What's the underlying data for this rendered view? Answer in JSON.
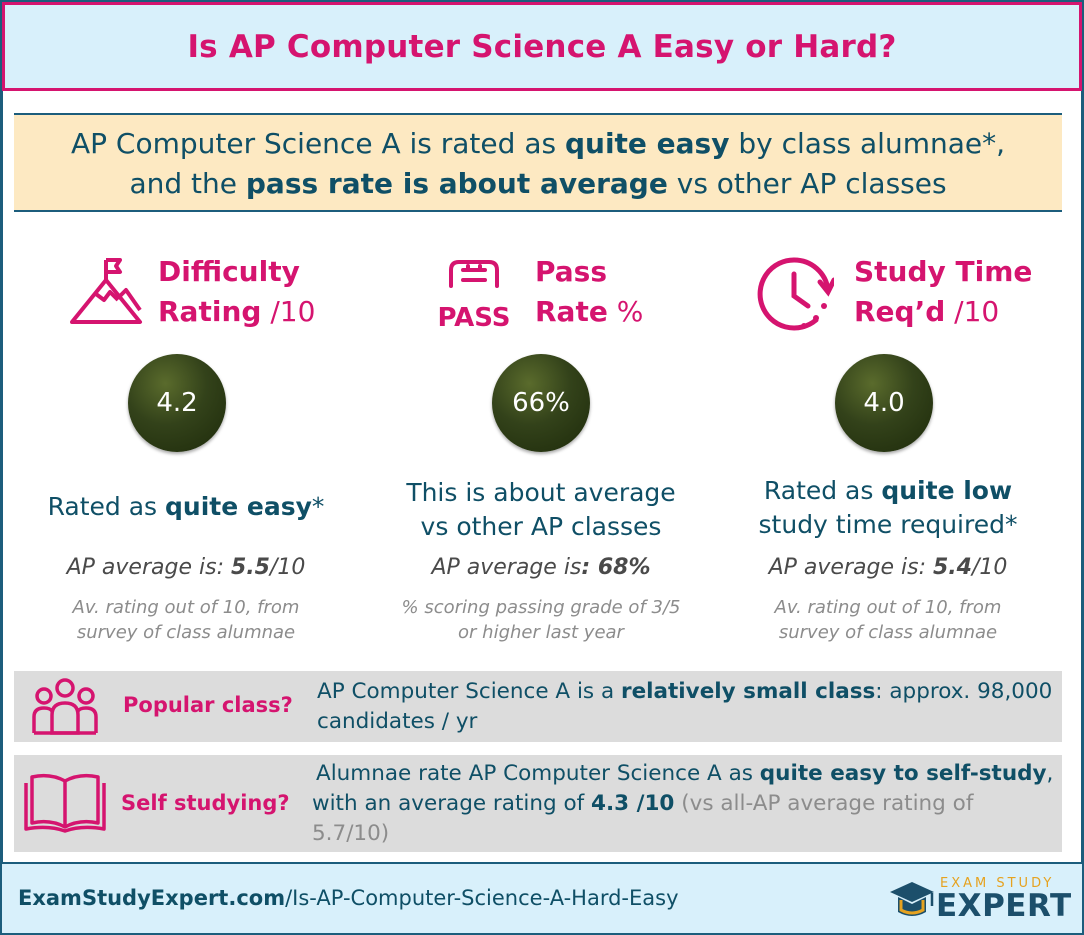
{
  "header": {
    "title": "Is AP Computer Science A Easy or Hard?"
  },
  "summary": {
    "line1_pre": "AP Computer Science A is rated as ",
    "line1_bold": "quite easy",
    "line1_post": " by class alumnae*,",
    "line2_pre": "and the ",
    "line2_bold": "pass rate is about average",
    "line2_post": " vs other AP classes"
  },
  "columns": [
    {
      "icon": "mountain-flag-icon",
      "title_line1": "Difficulty",
      "title_line2": "Rating",
      "unit": " /10",
      "value": "4.2",
      "desc_pre": "Rated as ",
      "desc_bold": "quite easy",
      "desc_post": "*",
      "avg_pre": "AP average is: ",
      "avg_bold": "5.5",
      "avg_post": "/10",
      "note_line1": "Av. rating out of 10, from",
      "note_line2": "survey of class alumnae"
    },
    {
      "icon": "pass-icon",
      "icon_text": "PASS",
      "title_line1": "Pass",
      "title_line2": "Rate",
      "unit": " %",
      "value": "66%",
      "desc_line1": "This is about average",
      "desc_line2": "vs other AP classes",
      "avg_pre": "AP average is",
      "avg_bold": ": 68%",
      "note_line1": "% scoring passing grade of 3/5",
      "note_line2": "or higher last year"
    },
    {
      "icon": "clock-icon",
      "title_line1": "Study Time",
      "title_line2": "Req’d",
      "unit": " /10",
      "value": "4.0",
      "desc_pre": "Rated as ",
      "desc_bold": "quite low",
      "desc_line2": "study time required*",
      "avg_pre": "AP average is: ",
      "avg_bold": "5.4",
      "avg_post": "/10",
      "note_line1": "Av. rating out of 10, from",
      "note_line2": "survey of class alumnae"
    }
  ],
  "popular": {
    "icon": "people-icon",
    "label": "Popular class?",
    "text_pre": "AP Computer Science A is a ",
    "text_bold": "relatively small class",
    "text_post": ": approx. 98,000",
    "text_line2": "candidates / yr"
  },
  "self_study": {
    "icon": "open-book-icon",
    "label": "Self studying?",
    "text_pre": "Alumnae rate AP Computer Science A as ",
    "text_bold": "quite easy to self-study",
    "text_post": ",",
    "text2_pre": "with an average rating of ",
    "text2_bold": "4.3 /10",
    "text2_muted": " (vs all-AP average rating of",
    "text3_muted": "5.7/10)"
  },
  "footer": {
    "url_bold": "ExamStudyExpert.com",
    "url_rest": "/Is-AP-Computer-Science-A-Hard-Easy",
    "logo_top": "EXAM STUDY",
    "logo_main": "EXPERT",
    "logo_icon": "graduation-cap-icon"
  },
  "colors": {
    "accent": "#d5146f",
    "text": "#0f4f66",
    "header_bg": "#d8f0fb",
    "summary_bg": "#fde9c2",
    "ball": "#33421a",
    "row_bg": "#dcdcdc",
    "logo_gold": "#e6a21f"
  }
}
